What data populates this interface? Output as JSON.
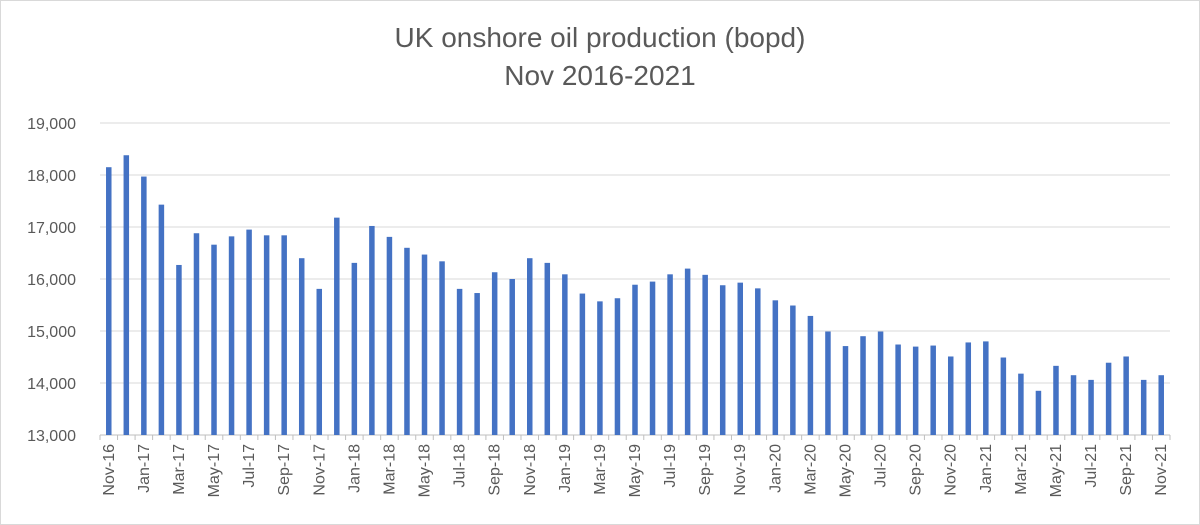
{
  "chart_data": {
    "type": "bar",
    "title": "UK onshore oil production (bopd)",
    "subtitle": "Nov 2016-2021",
    "xlabel": "",
    "ylabel": "",
    "ylim": [
      13000,
      19000
    ],
    "yticks": [
      "13,000",
      "14,000",
      "15,000",
      "16,000",
      "17,000",
      "18,000",
      "19,000"
    ],
    "grid": true,
    "bar_color": "#4472c4",
    "categories": [
      "Nov-16",
      "Dec-16",
      "Jan-17",
      "Feb-17",
      "Mar-17",
      "Apr-17",
      "May-17",
      "Jun-17",
      "Jul-17",
      "Aug-17",
      "Sep-17",
      "Oct-17",
      "Nov-17",
      "Dec-17",
      "Jan-18",
      "Feb-18",
      "Mar-18",
      "Apr-18",
      "May-18",
      "Jun-18",
      "Jul-18",
      "Aug-18",
      "Sep-18",
      "Oct-18",
      "Nov-18",
      "Dec-18",
      "Jan-19",
      "Feb-19",
      "Mar-19",
      "Apr-19",
      "May-19",
      "Jun-19",
      "Jul-19",
      "Aug-19",
      "Sep-19",
      "Oct-19",
      "Nov-19",
      "Dec-19",
      "Jan-20",
      "Feb-20",
      "Mar-20",
      "Apr-20",
      "May-20",
      "Jun-20",
      "Jul-20",
      "Aug-20",
      "Sep-20",
      "Oct-20",
      "Nov-20",
      "Dec-20",
      "Jan-21",
      "Feb-21",
      "Mar-21",
      "Apr-21",
      "May-21",
      "Jun-21",
      "Jul-21",
      "Aug-21",
      "Sep-21",
      "Oct-21",
      "Nov-21"
    ],
    "visible_tick_labels": [
      "Nov-16",
      "Jan-17",
      "Mar-17",
      "May-17",
      "Jul-17",
      "Sep-17",
      "Nov-17",
      "Jan-18",
      "Mar-18",
      "May-18",
      "Jul-18",
      "Sep-18",
      "Nov-18",
      "Jan-19",
      "Mar-19",
      "May-19",
      "Jul-19",
      "Sep-19",
      "Nov-19",
      "Jan-20",
      "Mar-20",
      "May-20",
      "Jul-20",
      "Sep-20",
      "Nov-20",
      "Jan-21",
      "Mar-21",
      "May-21",
      "Jul-21",
      "Sep-21",
      "Nov-21"
    ],
    "values": [
      18150,
      18380,
      17970,
      17430,
      16270,
      16880,
      16660,
      16820,
      16950,
      16840,
      16840,
      16400,
      15810,
      17180,
      16310,
      17020,
      16810,
      16600,
      16470,
      16340,
      15810,
      15730,
      16130,
      16000,
      16400,
      16310,
      16090,
      15720,
      15570,
      15630,
      15890,
      15950,
      16090,
      16200,
      16080,
      15880,
      15930,
      15820,
      15590,
      15490,
      15290,
      14990,
      14710,
      14900,
      14990,
      14740,
      14700,
      14720,
      14510,
      14780,
      14800,
      14490,
      14180,
      13850,
      14330,
      14150,
      14060,
      14390,
      14510,
      14060,
      14150
    ]
  }
}
